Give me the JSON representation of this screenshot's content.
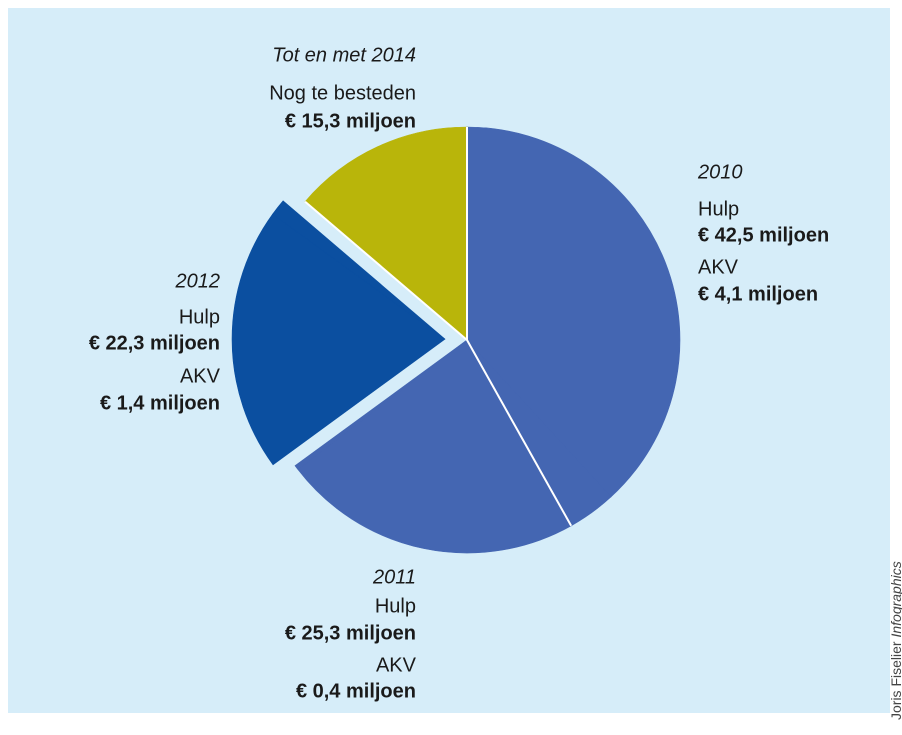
{
  "chart_data": {
    "type": "pie",
    "slices": [
      {
        "label": "2010",
        "color": "#4466b2",
        "explode": false,
        "items": [
          {
            "name": "Hulp",
            "value": 42.5,
            "value_label": "€ 42,5 miljoen"
          },
          {
            "name": "AKV",
            "value": 4.1,
            "value_label": "€ 4,1 miljoen"
          }
        ]
      },
      {
        "label": "2011",
        "color": "#4466b2",
        "explode": false,
        "items": [
          {
            "name": "Hulp",
            "value": 25.3,
            "value_label": "€ 25,3 miljoen"
          },
          {
            "name": "AKV",
            "value": 0.4,
            "value_label": "€ 0,4 miljoen"
          }
        ]
      },
      {
        "label": "2012",
        "color": "#0b4fa0",
        "explode": true,
        "items": [
          {
            "name": "Hulp",
            "value": 22.3,
            "value_label": "€ 22,3 miljoen"
          },
          {
            "name": "AKV",
            "value": 1.4,
            "value_label": "€ 1,4 miljoen"
          }
        ]
      },
      {
        "label": "Tot en met 2014",
        "color": "#b9b50a",
        "explode": false,
        "items": [
          {
            "name": "Nog te besteden",
            "value": 15.3,
            "value_label": "€ 15,3 miljoen"
          }
        ]
      }
    ],
    "credit": {
      "name": "Joris Fiselier",
      "suffix": "Infographics"
    }
  }
}
